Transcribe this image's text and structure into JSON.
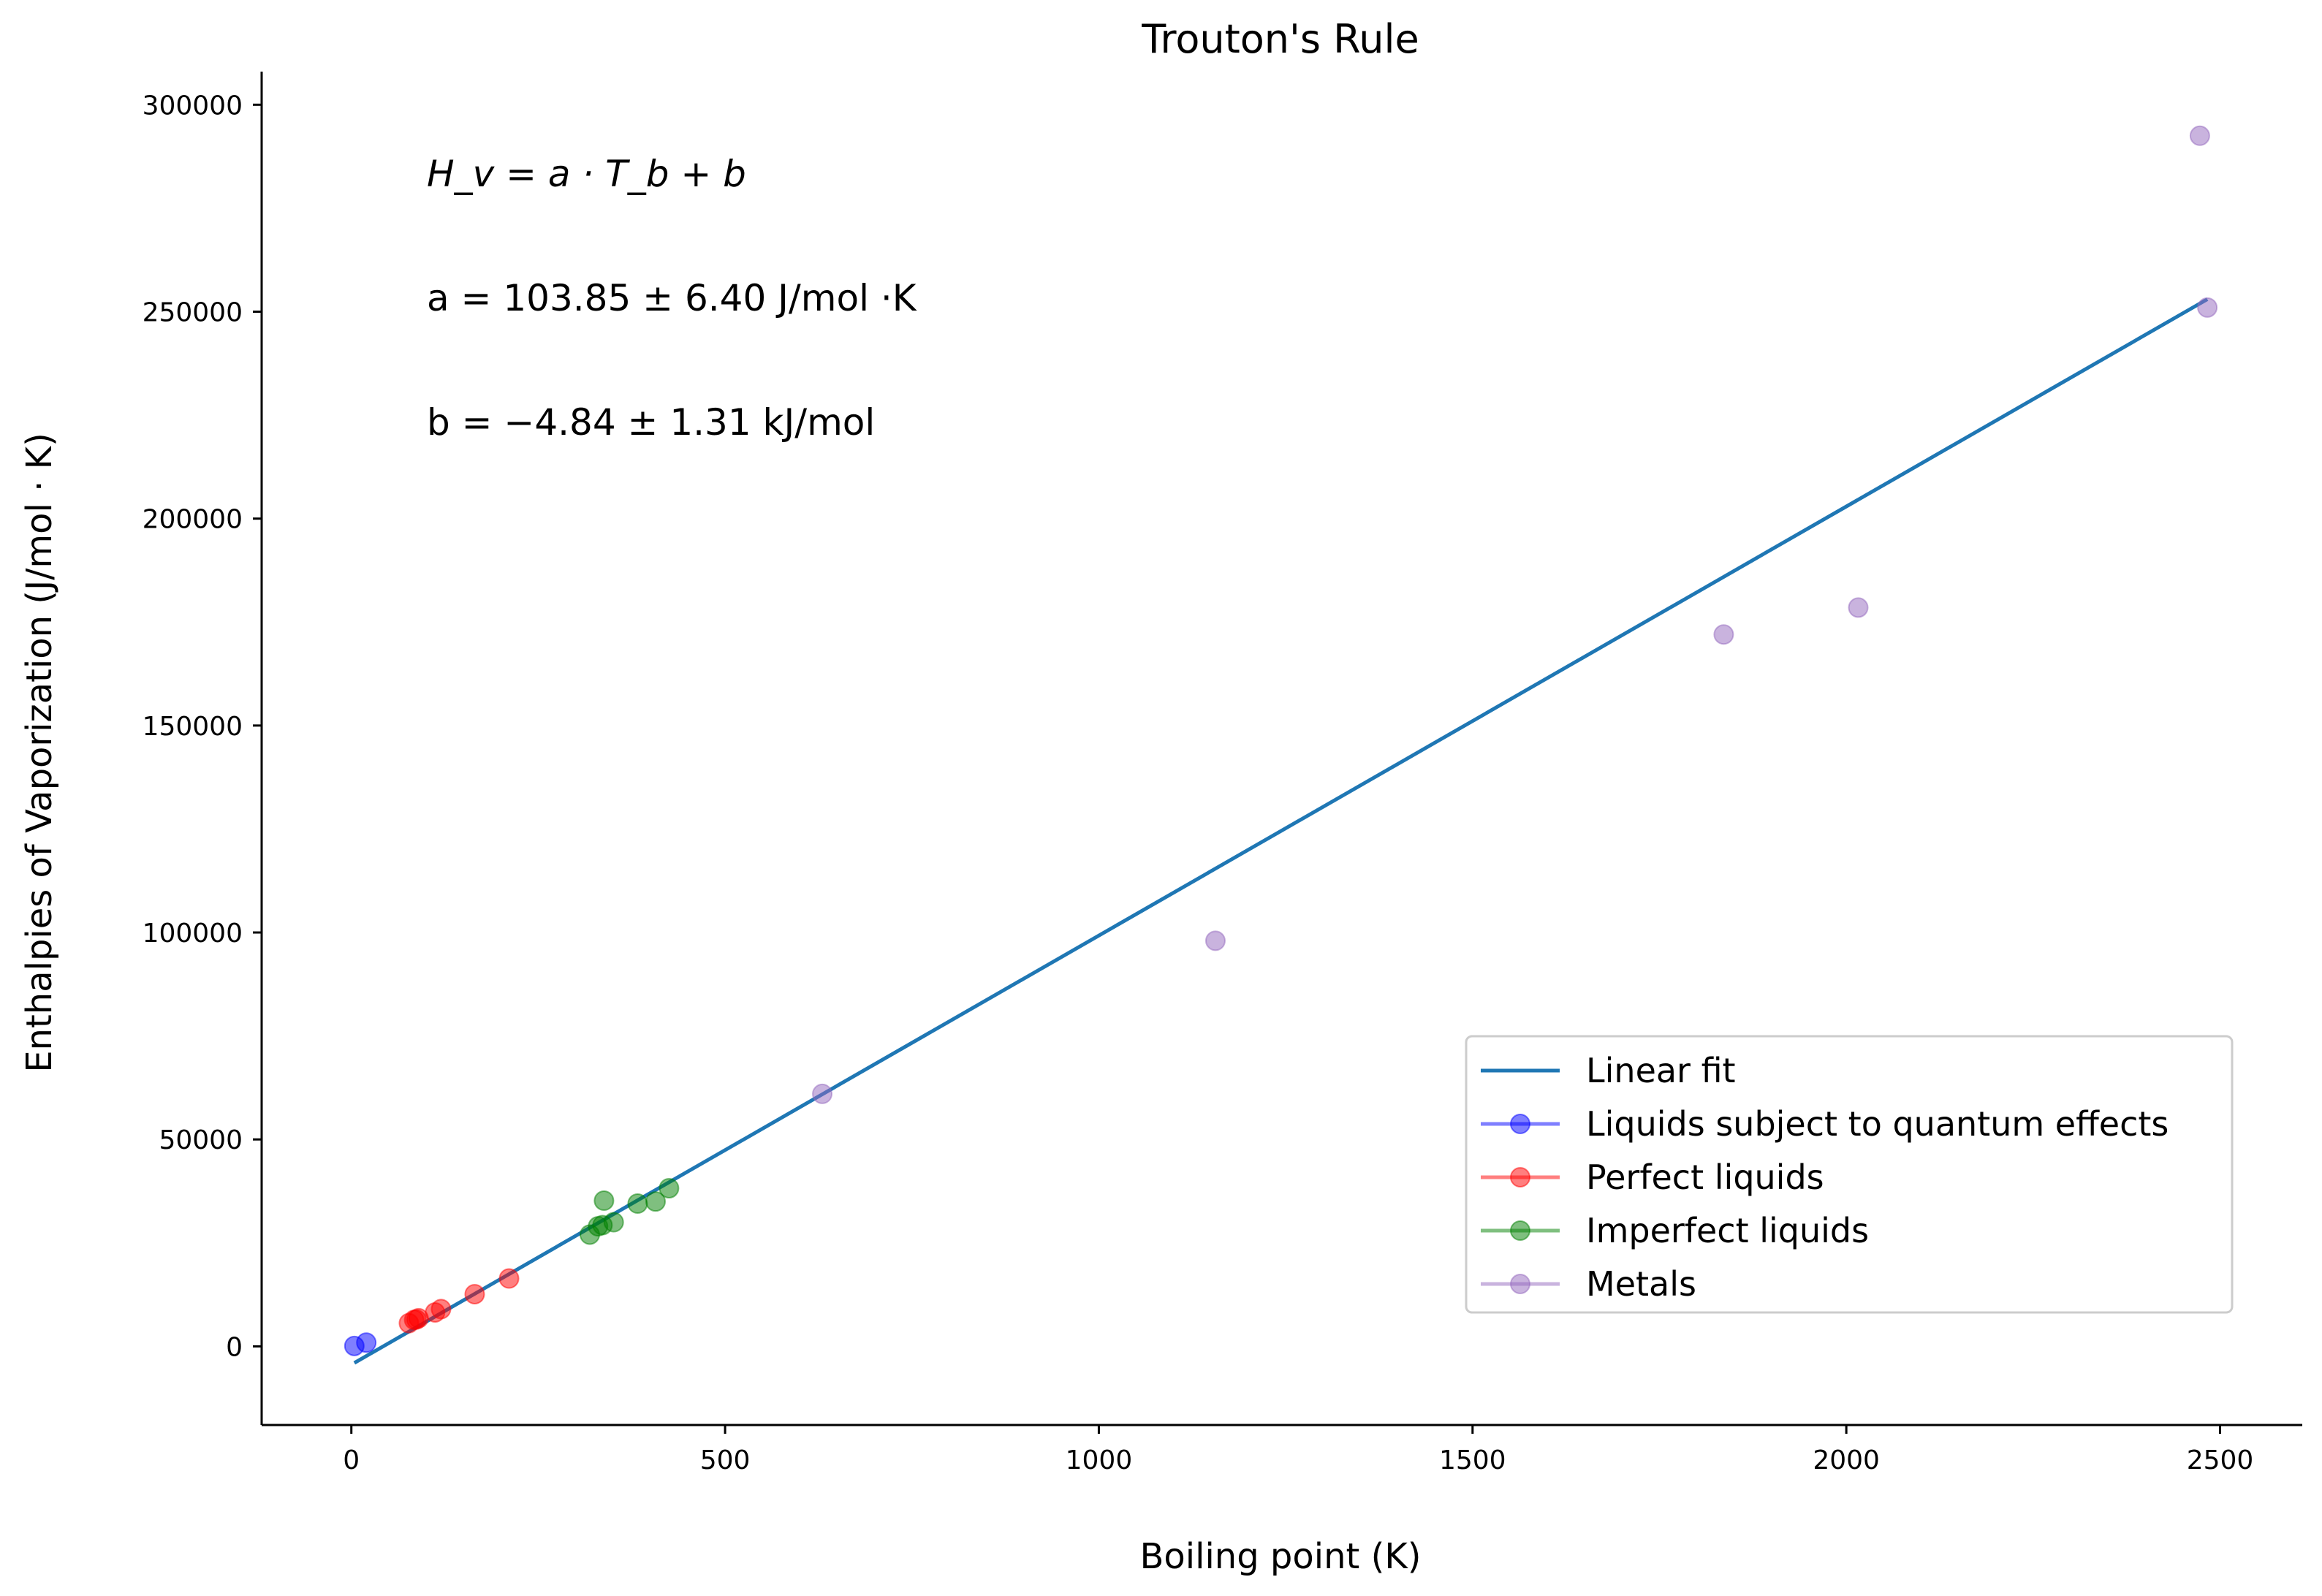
{
  "chart_data": {
    "type": "scatter",
    "title": "Trouton's Rule",
    "xlabel": "Boiling point (K)",
    "ylabel": "Enthalpies of Vaporization (J/mol · K)",
    "xlim": [
      -120,
      2610
    ],
    "ylim": [
      -19000,
      308000
    ],
    "xticks": [
      0,
      500,
      1000,
      1500,
      2000,
      2500
    ],
    "yticks": [
      0,
      50000,
      100000,
      150000,
      200000,
      250000,
      300000
    ],
    "x_tick_labels": [
      "0",
      "500",
      "1000",
      "1500",
      "2000",
      "2500"
    ],
    "y_tick_labels": [
      "0",
      "50000",
      "100000",
      "150000",
      "200000",
      "250000",
      "300000"
    ],
    "grid": false,
    "legend_position": "lower-right",
    "annotations": {
      "formula": "H_v = a · T_b + b",
      "a_text": "a = 103.85 ± 6.40 J/mol ·K",
      "b_text": "b = −4.84 ± 1.31 kJ/mol"
    },
    "fit": {
      "name": "Linear fit",
      "color": "#1f77b4",
      "x": [
        4,
        2483
      ],
      "y": [
        -4000,
        253000
      ]
    },
    "series": [
      {
        "name": "Liquids subject to quantum effects",
        "color": "#0000ff",
        "points": [
          [
            4,
            100
          ],
          [
            20,
            900
          ]
        ]
      },
      {
        "name": "Perfect liquids",
        "color": "#ff0000",
        "points": [
          [
            77,
            5600
          ],
          [
            84,
            6400
          ],
          [
            87,
            6500
          ],
          [
            90,
            6800
          ],
          [
            112,
            8200
          ],
          [
            120,
            9000
          ],
          [
            165,
            12600
          ],
          [
            211,
            16400
          ]
        ]
      },
      {
        "name": "Imperfect liquids",
        "color": "#008000",
        "points": [
          [
            319,
            27000
          ],
          [
            330,
            29000
          ],
          [
            336,
            29300
          ],
          [
            338,
            35200
          ],
          [
            351,
            30000
          ],
          [
            383,
            34500
          ],
          [
            407,
            35000
          ],
          [
            425,
            38200
          ]
        ]
      },
      {
        "name": "Metals",
        "color": "#9467bd",
        "points": [
          [
            630,
            61000
          ],
          [
            1156,
            98000
          ],
          [
            1836,
            172000
          ],
          [
            2016,
            178500
          ],
          [
            2473,
            292500
          ],
          [
            2483,
            251000
          ]
        ]
      }
    ]
  }
}
